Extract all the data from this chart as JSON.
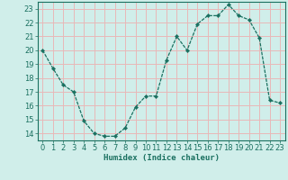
{
  "x": [
    0,
    1,
    2,
    3,
    4,
    5,
    6,
    7,
    8,
    9,
    10,
    11,
    12,
    13,
    14,
    15,
    16,
    17,
    18,
    19,
    20,
    21,
    22,
    23
  ],
  "y": [
    20.0,
    18.7,
    17.5,
    17.0,
    14.9,
    14.0,
    13.8,
    13.8,
    14.4,
    15.9,
    16.7,
    16.7,
    19.3,
    21.0,
    20.0,
    21.9,
    22.5,
    22.5,
    23.3,
    22.5,
    22.2,
    20.9,
    16.4,
    16.2
  ],
  "line_color": "#1a7060",
  "marker": "D",
  "marker_size": 2.2,
  "background_color": "#d0eeea",
  "grid_color": "#e8b8b8",
  "axis_color": "#1a7060",
  "xlabel": "Humidex (Indice chaleur)",
  "ylabel": "",
  "xlim": [
    -0.5,
    23.5
  ],
  "ylim": [
    13.5,
    23.5
  ],
  "yticks": [
    14,
    15,
    16,
    17,
    18,
    19,
    20,
    21,
    22,
    23
  ],
  "xticks": [
    0,
    1,
    2,
    3,
    4,
    5,
    6,
    7,
    8,
    9,
    10,
    11,
    12,
    13,
    14,
    15,
    16,
    17,
    18,
    19,
    20,
    21,
    22,
    23
  ],
  "label_fontsize": 6.5,
  "tick_fontsize": 6.0
}
